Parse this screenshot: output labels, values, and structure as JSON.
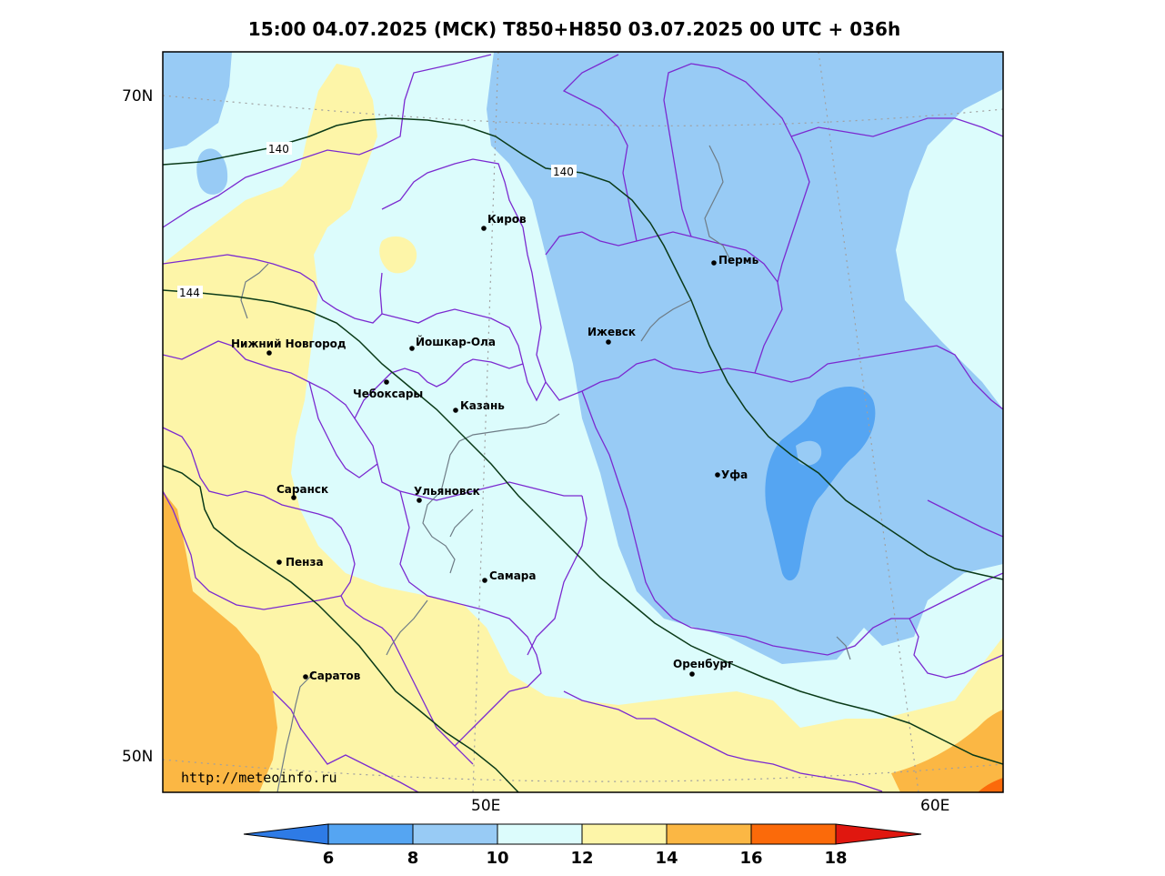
{
  "title": "15:00 04.07.2025 (МСК) T850+H850 03.07.2025 00 UTC + 036h",
  "axes": {
    "lat_labels": [
      "70N",
      "50N"
    ],
    "lon_labels": [
      "50E",
      "60E"
    ]
  },
  "watermark": "http://meteoinfo.ru",
  "cities": [
    {
      "name": "Киров"
    },
    {
      "name": "Пермь"
    },
    {
      "name": "Нижний Новгород"
    },
    {
      "name": "Йошкар-Ола"
    },
    {
      "name": "Ижевск"
    },
    {
      "name": "Чебоксары"
    },
    {
      "name": "Казань"
    },
    {
      "name": "Уфа"
    },
    {
      "name": "Саранск"
    },
    {
      "name": "Ульяновск"
    },
    {
      "name": "Пенза"
    },
    {
      "name": "Самара"
    },
    {
      "name": "Оренбург"
    },
    {
      "name": "Саратов"
    }
  ],
  "contour_labels": [
    "140",
    "140",
    "144"
  ],
  "colorbar": {
    "ticks": [
      "6",
      "8",
      "10",
      "12",
      "14",
      "16",
      "18"
    ],
    "colors": {
      "lt6": "#2e7be6",
      "6-8": "#55a5f2",
      "8-10": "#98cbf5",
      "10-12": "#dcfcfc",
      "12-14": "#fdf5a8",
      "14-16": "#fbb744",
      "16-18": "#fb6a0a",
      "gt18": "#e0170f"
    }
  }
}
